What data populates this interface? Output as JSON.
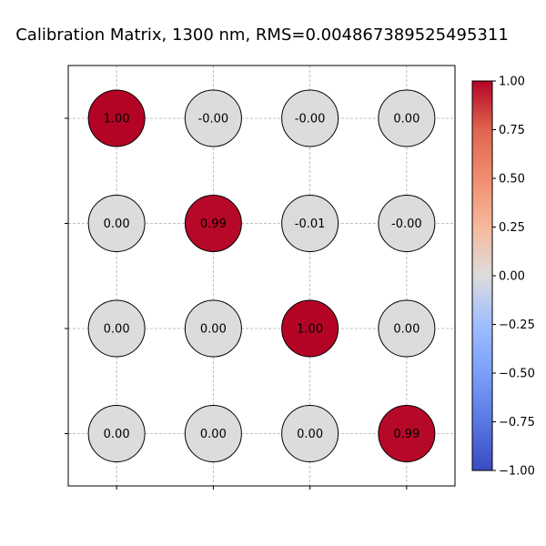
{
  "chart_data": {
    "type": "heatmap",
    "title": "Calibration Matrix, 1300 nm, RMS=0.004867389525495311",
    "xlabel": "",
    "ylabel": "",
    "rows": 4,
    "cols": 4,
    "values": [
      [
        1.0,
        -0.001,
        -0.001,
        0.001
      ],
      [
        0.001,
        0.99,
        -0.01,
        -0.001
      ],
      [
        0.001,
        0.001,
        1.0,
        0.001
      ],
      [
        0.001,
        0.001,
        0.001,
        0.99
      ]
    ],
    "labels": [
      [
        "1.00",
        "-0.00",
        "-0.00",
        "0.00"
      ],
      [
        "0.00",
        "0.99",
        "-0.01",
        "-0.00"
      ],
      [
        "0.00",
        "0.00",
        "1.00",
        "0.00"
      ],
      [
        "0.00",
        "0.00",
        "0.00",
        "0.99"
      ]
    ],
    "colorbar": {
      "colormap": "coolwarm",
      "range": [
        -1.0,
        1.0
      ],
      "ticks": [
        1.0,
        0.75,
        0.5,
        0.25,
        0.0,
        -0.25,
        -0.5,
        -0.75,
        -1.0
      ],
      "tick_labels": [
        "1.00",
        "0.75",
        "0.50",
        "0.25",
        "0.00",
        "−0.25",
        "−0.50",
        "−0.75",
        "−1.00"
      ]
    },
    "grid": true,
    "marker": "circle"
  }
}
